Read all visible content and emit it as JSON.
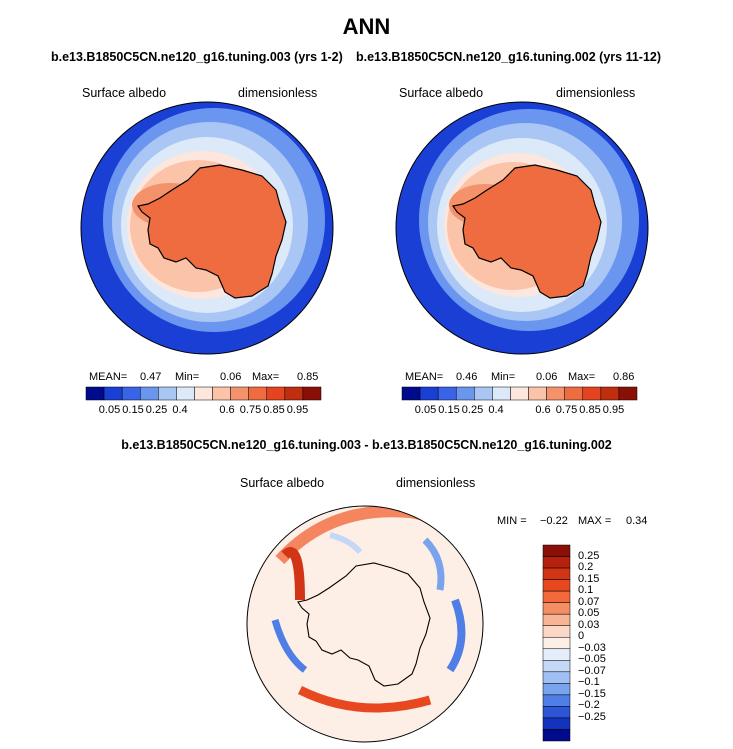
{
  "title": "ANN",
  "panels": [
    {
      "case_title": "b.e13.B1850C5CN.ne120_g16.tuning.003 (yrs 1-2)",
      "variable": "Surface albedo",
      "units": "dimensionless",
      "mean_label": "MEAN=",
      "mean": "0.47",
      "min_label": "Min=",
      "min": "0.06",
      "max_label": "Max=",
      "max": "0.85"
    },
    {
      "case_title": "b.e13.B1850C5CN.ne120_g16.tuning.002 (yrs 11-12)",
      "variable": "Surface albedo",
      "units": "dimensionless",
      "mean_label": "MEAN=",
      "mean": "0.46",
      "min_label": "Min=",
      "min": "0.06",
      "max_label": "Max=",
      "max": "0.86"
    }
  ],
  "diff": {
    "title": "b.e13.B1850C5CN.ne120_g16.tuning.003 - b.e13.B1850C5CN.ne120_g16.tuning.002",
    "variable": "Surface albedo",
    "units": "dimensionless",
    "min_label": "MIN =",
    "min": "−0.22",
    "max_label": "MAX =",
    "max": "0.34"
  },
  "chart_data": [
    {
      "type": "heatmap",
      "projection": "south-polar stereographic",
      "title": "b.e13.B1850C5CN.ne120_g16.tuning.003 (yrs 1-2)",
      "field": "Surface albedo",
      "units": "dimensionless",
      "stats": {
        "mean": 0.47,
        "min": 0.06,
        "max": 0.85
      },
      "colorbar_levels": [
        0.05,
        0.15,
        0.25,
        0.4,
        0.6,
        0.75,
        0.85,
        0.95
      ],
      "colorbar_colors": [
        "#000a8c",
        "#1a3fd4",
        "#3a64e8",
        "#6b96f0",
        "#a9c6f4",
        "#dce9f8",
        "#fde6dd",
        "#fbc3a8",
        "#f4926c",
        "#ef6b40",
        "#e44420",
        "#c02e10",
        "#8a0f06"
      ]
    },
    {
      "type": "heatmap",
      "projection": "south-polar stereographic",
      "title": "b.e13.B1850C5CN.ne120_g16.tuning.002 (yrs 11-12)",
      "field": "Surface albedo",
      "units": "dimensionless",
      "stats": {
        "mean": 0.46,
        "min": 0.06,
        "max": 0.86
      },
      "colorbar_levels": [
        0.05,
        0.15,
        0.25,
        0.4,
        0.6,
        0.75,
        0.85,
        0.95
      ],
      "colorbar_colors": [
        "#000a8c",
        "#1a3fd4",
        "#3a64e8",
        "#6b96f0",
        "#a9c6f4",
        "#dce9f8",
        "#fde6dd",
        "#fbc3a8",
        "#f4926c",
        "#ef6b40",
        "#e44420",
        "#c02e10",
        "#8a0f06"
      ]
    },
    {
      "type": "heatmap",
      "projection": "south-polar stereographic",
      "title": "b.e13.B1850C5CN.ne120_g16.tuning.003 - b.e13.B1850C5CN.ne120_g16.tuning.002",
      "field": "Surface albedo",
      "units": "dimensionless",
      "stats": {
        "min": -0.22,
        "max": 0.34
      },
      "colorbar_levels": [
        "0.25",
        "0.2",
        "0.15",
        "0.1",
        "0.07",
        "0.05",
        "0.03",
        "0",
        "−0.03",
        "−0.05",
        "−0.07",
        "−0.1",
        "−0.15",
        "−0.2",
        "−0.25"
      ],
      "colorbar_colors": [
        "#8a0f06",
        "#b4210c",
        "#d23416",
        "#e8481f",
        "#f26a3c",
        "#f58e64",
        "#f8b596",
        "#fbd8c6",
        "#fdeee6",
        "#e4eefa",
        "#c4d8f6",
        "#a0bff2",
        "#7aa3ee",
        "#4f7fe6",
        "#2c55d8",
        "#1332bd",
        "#000a8c"
      ]
    }
  ]
}
